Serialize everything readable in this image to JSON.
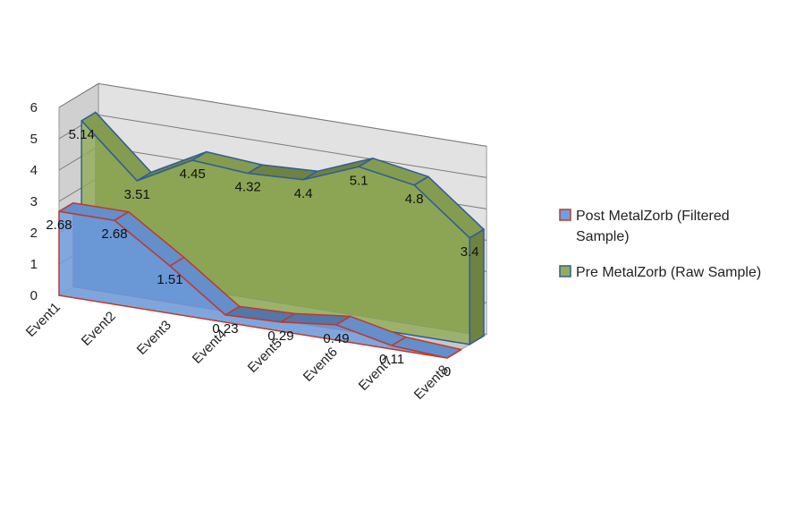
{
  "chart_data": {
    "type": "area",
    "categories": [
      "Event1",
      "Event2",
      "Event3",
      "Event4",
      "Event5",
      "Event6",
      "Event7",
      "Event8"
    ],
    "ylim": [
      0,
      6
    ],
    "yticks": [
      "0",
      "1",
      "2",
      "3",
      "4",
      "5",
      "6"
    ],
    "grid": true,
    "legend_position": "right",
    "series": [
      {
        "name": "Post MetalZorb (Filtered Sample)",
        "values": [
          2.68,
          2.68,
          1.51,
          0.23,
          0.29,
          0.49,
          0.11,
          0
        ],
        "labels": [
          "2.68",
          "2.68",
          "1.51",
          "0.23",
          "0.29",
          "0.49",
          "0.11",
          "0"
        ],
        "color": "#6f9fe0",
        "edge": "#c0392b"
      },
      {
        "name": "Pre MetalZorb (Raw Sample)",
        "values": [
          5.14,
          3.51,
          4.45,
          4.32,
          4.4,
          5.1,
          4.8,
          3.4
        ],
        "labels": [
          "5.14",
          "3.51",
          "4.45",
          "4.32",
          "4.4",
          "5.1",
          "4.8",
          "3.4"
        ],
        "color": "#92ad58",
        "edge": "#2e5d9a"
      }
    ],
    "legend": [
      {
        "lines": [
          "Post MetalZorb (Filtered",
          "Sample)"
        ]
      },
      {
        "lines": [
          "Pre MetalZorb (Raw Sample)"
        ]
      }
    ]
  }
}
